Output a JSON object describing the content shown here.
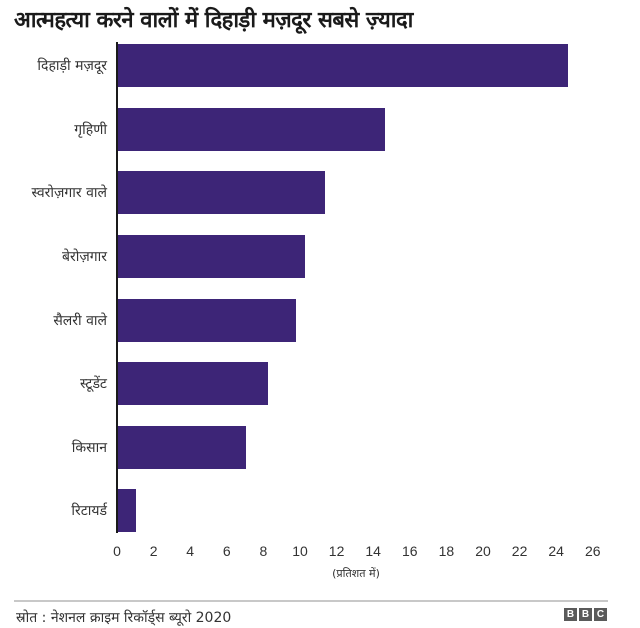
{
  "header": {
    "title": "आत्महत्या करने वालों में दिहाड़ी मज़दूर सबसे ज़्यादा"
  },
  "footer": {
    "source": "स्रोत : नेशनल क्राइम रिकॉर्ड्स ब्यूरो 2020",
    "logo_letters": [
      "B",
      "B",
      "C"
    ]
  },
  "colors": {
    "bar": "#3d2577",
    "axis": "#1a1a1a",
    "separator": "#c8c8c8"
  },
  "chart_data": {
    "type": "bar",
    "orientation": "horizontal",
    "title": "आत्महत्या करने वालों में दिहाड़ी मज़दूर सबसे ज़्यादा",
    "xlabel": "(प्रतिशत में)",
    "ylabel": "",
    "categories": [
      "दिहाड़ी मज़दूर",
      "गृहिणी",
      "स्वरोज़गार वाले",
      "बेरोज़गार",
      "सैलरी वाले",
      "स्टूडेंट",
      "किसान",
      "रिटायर्ड"
    ],
    "values": [
      24.6,
      14.6,
      11.3,
      10.2,
      9.7,
      8.2,
      7.0,
      1.0
    ],
    "xlim": [
      0,
      26
    ],
    "xticks": [
      "0",
      "2",
      "4",
      "6",
      "8",
      "10",
      "12",
      "14",
      "16",
      "18",
      "20",
      "22",
      "24",
      "26"
    ],
    "grid": false,
    "legend": null,
    "source": "स्रोत : नेशनल क्राइम रिकॉर्ड्स ब्यूरो 2020"
  }
}
